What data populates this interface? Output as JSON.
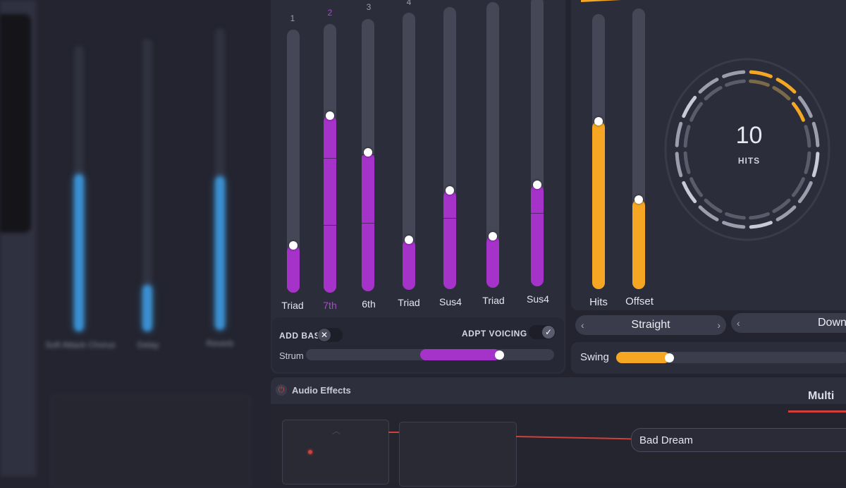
{
  "left_effects": {
    "sliders": [
      {
        "label": "Soft Attack Chorus",
        "level": 0.55
      },
      {
        "label": "Delay",
        "level": 0.16
      },
      {
        "label": "Reverb",
        "level": 0.51
      }
    ]
  },
  "chord_sliders": {
    "numbers": [
      "1",
      "2",
      "3",
      "4"
    ],
    "items": [
      {
        "label": "Triad",
        "level": 0.18,
        "active": false
      },
      {
        "label": "7th",
        "level": 0.66,
        "active": true
      },
      {
        "label": "6th",
        "level": 0.51,
        "active": false
      },
      {
        "label": "Triad",
        "level": 0.18,
        "active": false
      },
      {
        "label": "Sus4",
        "level": 0.35,
        "active": false
      },
      {
        "label": "Triad",
        "level": 0.18,
        "active": false
      },
      {
        "label": "Sus4",
        "level": 0.35,
        "active": false
      }
    ],
    "add_bass_label": "ADD BASS",
    "add_bass_on": false,
    "add_bass_icon": "close-icon",
    "adpt_voicing_label": "ADPT VOICING",
    "adpt_voicing_on": true,
    "adpt_voicing_icon": "check-icon",
    "strum_label": "Strum",
    "strum_value": 0.78
  },
  "rhythm": {
    "hits_label": "Hits",
    "hits_level": 0.61,
    "offset_label": "Offset",
    "offset_level": 0.32,
    "dial_value": "10",
    "dial_label": "HITS",
    "pattern_selector": {
      "value": "Straight",
      "prev_icon": "chevron-left-icon",
      "next_icon": "chevron-right-icon"
    },
    "direction_selector": {
      "value": "Down",
      "prev_icon": "chevron-left-icon"
    },
    "swing_label": "Swing",
    "swing_value": 0.23
  },
  "audio_effects": {
    "title": "Audio Effects",
    "power_icon": "power-icon",
    "mode": "Multi",
    "preset": "Bad Dream"
  },
  "colors": {
    "purple": "#a533c9",
    "orange": "#f5a623",
    "blue": "#3a8fd0",
    "red_line": "#d0403a"
  }
}
